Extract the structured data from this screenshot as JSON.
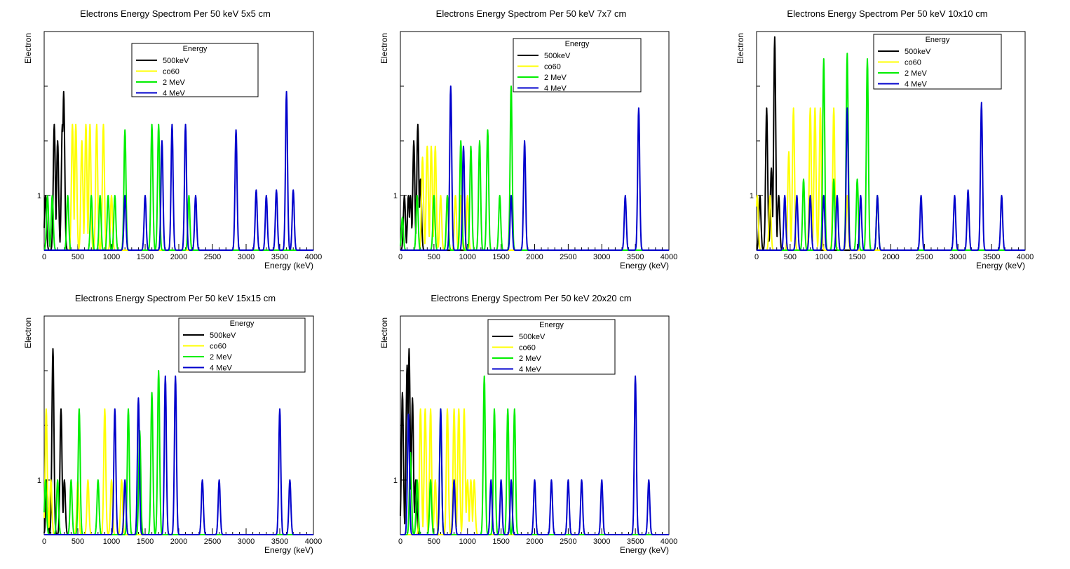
{
  "colors": {
    "500keV": "#000000",
    "co60": "#ffff00",
    "2MeV": "#00ee00",
    "4MeV": "#0000cc"
  },
  "legend_title": "Energy",
  "chart_data": [
    {
      "type": "line",
      "title": "Electrons Energy Spectrom Per 50 keV 5x5 cm",
      "xlabel": "Energy (keV)",
      "ylabel": "Electron",
      "xlim": [
        0,
        4000
      ],
      "ylim": [
        0,
        4
      ],
      "x_ticks": [
        "0",
        "500",
        "1000",
        "1500",
        "2000",
        "2500",
        "3000",
        "3500",
        "4000"
      ],
      "y_ticks": [
        "1"
      ],
      "legend": {
        "position": "top-center"
      },
      "series": [
        {
          "name": "500keV",
          "color": "#000000",
          "peaks": [
            [
              20,
              1
            ],
            [
              150,
              2.3
            ],
            [
              200,
              2
            ],
            [
              270,
              2.3
            ],
            [
              290,
              2.9
            ]
          ]
        },
        {
          "name": "co60",
          "color": "#ffff00",
          "peaks": [
            [
              420,
              2.3
            ],
            [
              470,
              2.3
            ],
            [
              560,
              2
            ],
            [
              620,
              2.3
            ],
            [
              680,
              2.3
            ],
            [
              780,
              2.3
            ],
            [
              880,
              2.3
            ],
            [
              1000,
              1
            ]
          ]
        },
        {
          "name": "2 MeV",
          "color": "#00ee00",
          "peaks": [
            [
              50,
              1
            ],
            [
              120,
              1
            ],
            [
              350,
              1
            ],
            [
              700,
              1
            ],
            [
              830,
              1
            ],
            [
              950,
              1
            ],
            [
              1050,
              1
            ],
            [
              1200,
              2.2
            ],
            [
              1600,
              2.3
            ],
            [
              1700,
              2.3
            ],
            [
              2150,
              1
            ]
          ]
        },
        {
          "name": "4 MeV",
          "color": "#0000cc",
          "peaks": [
            [
              1200,
              1
            ],
            [
              1500,
              1
            ],
            [
              1750,
              2
            ],
            [
              1900,
              2.3
            ],
            [
              2100,
              2.3
            ],
            [
              2250,
              1
            ],
            [
              2850,
              2.2
            ],
            [
              3150,
              1.1
            ],
            [
              3300,
              1
            ],
            [
              3450,
              1.1
            ],
            [
              3600,
              2.9
            ],
            [
              3700,
              1.1
            ]
          ]
        }
      ]
    },
    {
      "type": "line",
      "title": "Electrons Energy Spectrom Per 50 keV 7x7 cm",
      "xlabel": "Energy (keV)",
      "ylabel": "Electron",
      "xlim": [
        0,
        4000
      ],
      "ylim": [
        0,
        4
      ],
      "x_ticks": [
        "0",
        "500",
        "1000",
        "1500",
        "2000",
        "2500",
        "3000",
        "3500",
        "4000"
      ],
      "y_ticks": [
        "1"
      ],
      "legend": {
        "position": "top-right"
      },
      "series": [
        {
          "name": "500keV",
          "color": "#000000",
          "peaks": [
            [
              60,
              1
            ],
            [
              120,
              1
            ],
            [
              150,
              1
            ],
            [
              200,
              2
            ],
            [
              260,
              2.3
            ],
            [
              300,
              1.3
            ]
          ]
        },
        {
          "name": "co60",
          "color": "#ffff00",
          "peaks": [
            [
              330,
              1.7
            ],
            [
              400,
              1.9
            ],
            [
              460,
              1.9
            ],
            [
              520,
              1.9
            ],
            [
              600,
              1
            ],
            [
              700,
              1
            ],
            [
              820,
              1
            ],
            [
              900,
              1
            ],
            [
              1000,
              1
            ]
          ]
        },
        {
          "name": "2 MeV",
          "color": "#00ee00",
          "peaks": [
            [
              30,
              0.6
            ],
            [
              250,
              1
            ],
            [
              500,
              1
            ],
            [
              700,
              1
            ],
            [
              900,
              2
            ],
            [
              1050,
              1.9
            ],
            [
              1180,
              2
            ],
            [
              1300,
              2.2
            ],
            [
              1480,
              1
            ],
            [
              1650,
              3
            ]
          ]
        },
        {
          "name": "4 MeV",
          "color": "#0000cc",
          "peaks": [
            [
              750,
              3
            ],
            [
              940,
              1.9
            ],
            [
              1650,
              1
            ],
            [
              1850,
              2
            ],
            [
              3350,
              1
            ],
            [
              3550,
              2.6
            ]
          ]
        }
      ]
    },
    {
      "type": "line",
      "title": "Electrons Energy Spectrom Per 50 keV 10x10 cm",
      "xlabel": "Energy (keV)",
      "ylabel": "Electron",
      "xlim": [
        0,
        4000
      ],
      "ylim": [
        0,
        4
      ],
      "x_ticks": [
        "0",
        "500",
        "1000",
        "1500",
        "2000",
        "2500",
        "3000",
        "3500",
        "4000"
      ],
      "y_ticks": [
        "1"
      ],
      "legend": {
        "position": "top-right"
      },
      "series": [
        {
          "name": "500keV",
          "color": "#000000",
          "peaks": [
            [
              50,
              1
            ],
            [
              150,
              2.6
            ],
            [
              220,
              1.5
            ],
            [
              270,
              3.9
            ],
            [
              330,
              1
            ]
          ]
        },
        {
          "name": "co60",
          "color": "#ffff00",
          "peaks": [
            [
              10,
              1
            ],
            [
              200,
              1
            ],
            [
              480,
              1.8
            ],
            [
              550,
              2.6
            ],
            [
              800,
              2.6
            ],
            [
              870,
              2.6
            ],
            [
              950,
              2.6
            ],
            [
              1150,
              2.6
            ],
            [
              1350,
              1
            ]
          ]
        },
        {
          "name": "2 MeV",
          "color": "#00ee00",
          "peaks": [
            [
              700,
              1.3
            ],
            [
              1000,
              3.5
            ],
            [
              1150,
              1.3
            ],
            [
              1350,
              3.6
            ],
            [
              1500,
              1.3
            ],
            [
              1650,
              3.5
            ],
            [
              1800,
              1
            ]
          ]
        },
        {
          "name": "4 MeV",
          "color": "#0000cc",
          "peaks": [
            [
              420,
              1
            ],
            [
              600,
              1
            ],
            [
              800,
              1
            ],
            [
              1000,
              1
            ],
            [
              1200,
              1
            ],
            [
              1350,
              2.6
            ],
            [
              1550,
              1
            ],
            [
              1800,
              1
            ],
            [
              2450,
              1
            ],
            [
              2950,
              1
            ],
            [
              3150,
              1.1
            ],
            [
              3350,
              2.7
            ],
            [
              3650,
              1
            ]
          ]
        }
      ]
    },
    {
      "type": "line",
      "title": "Electrons Energy Spectrom Per 50 keV 15x15 cm",
      "xlabel": "Energy (keV)",
      "ylabel": "Electron",
      "xlim": [
        0,
        4000
      ],
      "ylim": [
        0,
        4
      ],
      "x_ticks": [
        "0",
        "500",
        "1000",
        "1500",
        "2000",
        "2500",
        "3000",
        "3500",
        "4000"
      ],
      "y_ticks": [
        "1"
      ],
      "legend": {
        "position": "top-right"
      },
      "series": [
        {
          "name": "500keV",
          "color": "#000000",
          "peaks": [
            [
              40,
              1
            ],
            [
              130,
              3.4
            ],
            [
              250,
              2.3
            ],
            [
              300,
              1
            ]
          ]
        },
        {
          "name": "co60",
          "color": "#ffff00",
          "peaks": [
            [
              30,
              2.3
            ],
            [
              100,
              1
            ],
            [
              500,
              1
            ],
            [
              650,
              1
            ],
            [
              900,
              2.3
            ],
            [
              1000,
              1
            ],
            [
              1150,
              1
            ]
          ]
        },
        {
          "name": "2 MeV",
          "color": "#00ee00",
          "peaks": [
            [
              20,
              1
            ],
            [
              200,
              1
            ],
            [
              400,
              1
            ],
            [
              520,
              2.3
            ],
            [
              800,
              1
            ],
            [
              1250,
              2.3
            ],
            [
              1420,
              1.9
            ],
            [
              1600,
              2.6
            ],
            [
              1700,
              3
            ]
          ]
        },
        {
          "name": "4 MeV",
          "color": "#0000cc",
          "peaks": [
            [
              1050,
              2.3
            ],
            [
              1200,
              1
            ],
            [
              1400,
              2.5
            ],
            [
              1800,
              2.9
            ],
            [
              1950,
              2.9
            ],
            [
              2350,
              1
            ],
            [
              2600,
              1
            ],
            [
              3500,
              2.3
            ],
            [
              3650,
              1
            ]
          ]
        }
      ]
    },
    {
      "type": "line",
      "title": "Electrons Energy Spectrom Per 50 keV 20x20 cm",
      "xlabel": "Energy (keV)",
      "ylabel": "Electron",
      "xlim": [
        0,
        4000
      ],
      "ylim": [
        0,
        4
      ],
      "x_ticks": [
        "0",
        "500",
        "1000",
        "1500",
        "2000",
        "2500",
        "3000",
        "3500",
        "4000"
      ],
      "y_ticks": [
        "1"
      ],
      "legend": {
        "position": "top-center"
      },
      "series": [
        {
          "name": "500keV",
          "color": "#000000",
          "peaks": [
            [
              30,
              2.6
            ],
            [
              100,
              3.1
            ],
            [
              130,
              3.4
            ],
            [
              180,
              2.5
            ],
            [
              230,
              1
            ]
          ]
        },
        {
          "name": "co60",
          "color": "#ffff00",
          "peaks": [
            [
              300,
              2.3
            ],
            [
              370,
              2.3
            ],
            [
              450,
              2.3
            ],
            [
              520,
              1
            ],
            [
              700,
              2.3
            ],
            [
              800,
              2.3
            ],
            [
              870,
              2.3
            ],
            [
              950,
              2.3
            ],
            [
              1000,
              1
            ],
            [
              1050,
              1
            ],
            [
              1100,
              1
            ]
          ]
        },
        {
          "name": "2 MeV",
          "color": "#00ee00",
          "peaks": [
            [
              150,
              1.5
            ],
            [
              250,
              1
            ],
            [
              450,
              1
            ],
            [
              600,
              2.3
            ],
            [
              1250,
              2.9
            ],
            [
              1400,
              2.3
            ],
            [
              1600,
              2.3
            ],
            [
              1700,
              2.3
            ]
          ]
        },
        {
          "name": "4 MeV",
          "color": "#0000cc",
          "peaks": [
            [
              120,
              2.2
            ],
            [
              600,
              2.3
            ],
            [
              800,
              1
            ],
            [
              1350,
              1
            ],
            [
              1500,
              1
            ],
            [
              1650,
              1
            ],
            [
              2000,
              1
            ],
            [
              2250,
              1
            ],
            [
              2500,
              1
            ],
            [
              2700,
              1
            ],
            [
              3000,
              1
            ],
            [
              3500,
              2.9
            ],
            [
              3700,
              1
            ]
          ]
        }
      ]
    }
  ]
}
